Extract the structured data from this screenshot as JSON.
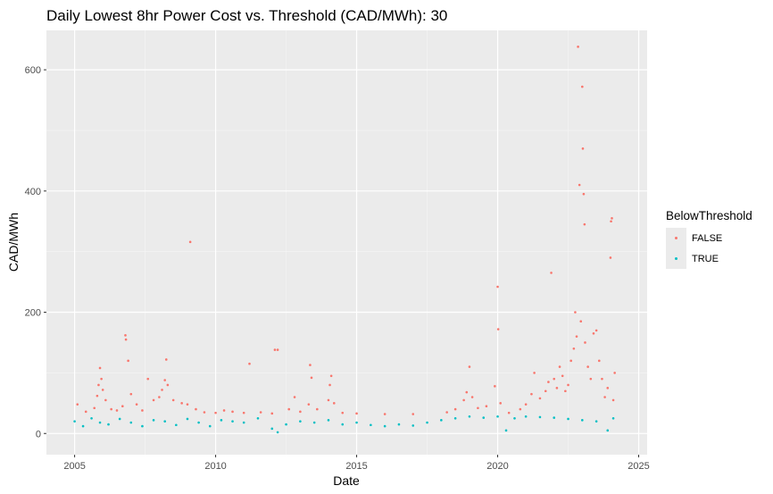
{
  "chart_data": {
    "type": "scatter",
    "title": "Daily Lowest 8hr Power Cost vs. Threshold (CAD/MWh): 30",
    "xlabel": "Date",
    "ylabel": "CAD/MWh",
    "xlim": [
      2004.0,
      2025.3
    ],
    "ylim": [
      -35,
      665
    ],
    "x_ticks": [
      2005,
      2010,
      2015,
      2020,
      2025
    ],
    "x_tick_labels": [
      "2005",
      "2010",
      "2015",
      "2020",
      "2025"
    ],
    "y_ticks": [
      0,
      200,
      400,
      600
    ],
    "y_tick_labels": [
      "0",
      "200",
      "400",
      "600"
    ],
    "grid": true,
    "legend": {
      "title": "BelowThreshold",
      "position": "right"
    },
    "series": [
      {
        "name": "FALSE",
        "color": "#F8766D",
        "points": [
          [
            2005.1,
            48
          ],
          [
            2005.4,
            36
          ],
          [
            2005.7,
            42
          ],
          [
            2005.8,
            62
          ],
          [
            2005.85,
            80
          ],
          [
            2005.9,
            108
          ],
          [
            2005.95,
            90
          ],
          [
            2006.0,
            72
          ],
          [
            2006.1,
            55
          ],
          [
            2006.3,
            40
          ],
          [
            2006.5,
            38
          ],
          [
            2006.7,
            45
          ],
          [
            2006.8,
            162
          ],
          [
            2006.82,
            155
          ],
          [
            2006.9,
            120
          ],
          [
            2007.0,
            65
          ],
          [
            2007.2,
            48
          ],
          [
            2007.4,
            38
          ],
          [
            2007.6,
            90
          ],
          [
            2007.8,
            55
          ],
          [
            2008.0,
            60
          ],
          [
            2008.1,
            72
          ],
          [
            2008.2,
            88
          ],
          [
            2008.25,
            122
          ],
          [
            2008.3,
            80
          ],
          [
            2008.5,
            55
          ],
          [
            2008.8,
            50
          ],
          [
            2009.0,
            48
          ],
          [
            2009.1,
            316
          ],
          [
            2009.3,
            40
          ],
          [
            2009.6,
            35
          ],
          [
            2010.0,
            34
          ],
          [
            2010.3,
            38
          ],
          [
            2010.6,
            36
          ],
          [
            2011.0,
            34
          ],
          [
            2011.2,
            115
          ],
          [
            2011.6,
            35
          ],
          [
            2012.0,
            33
          ],
          [
            2012.1,
            138
          ],
          [
            2012.2,
            138
          ],
          [
            2012.6,
            40
          ],
          [
            2012.8,
            60
          ],
          [
            2013.0,
            36
          ],
          [
            2013.3,
            48
          ],
          [
            2013.35,
            113
          ],
          [
            2013.4,
            92
          ],
          [
            2013.6,
            40
          ],
          [
            2014.0,
            55
          ],
          [
            2014.05,
            80
          ],
          [
            2014.1,
            95
          ],
          [
            2014.2,
            50
          ],
          [
            2014.5,
            34
          ],
          [
            2015.0,
            33
          ],
          [
            2016.0,
            32
          ],
          [
            2017.0,
            32
          ],
          [
            2018.2,
            35
          ],
          [
            2018.5,
            40
          ],
          [
            2018.8,
            55
          ],
          [
            2018.9,
            68
          ],
          [
            2019.0,
            110
          ],
          [
            2019.1,
            60
          ],
          [
            2019.3,
            42
          ],
          [
            2019.6,
            45
          ],
          [
            2019.9,
            78
          ],
          [
            2020.0,
            242
          ],
          [
            2020.02,
            172
          ],
          [
            2020.1,
            50
          ],
          [
            2020.4,
            34
          ],
          [
            2020.8,
            40
          ],
          [
            2021.0,
            48
          ],
          [
            2021.2,
            65
          ],
          [
            2021.3,
            100
          ],
          [
            2021.5,
            58
          ],
          [
            2021.7,
            70
          ],
          [
            2021.8,
            85
          ],
          [
            2021.9,
            265
          ],
          [
            2022.0,
            90
          ],
          [
            2022.1,
            75
          ],
          [
            2022.2,
            110
          ],
          [
            2022.3,
            95
          ],
          [
            2022.4,
            70
          ],
          [
            2022.5,
            80
          ],
          [
            2022.6,
            120
          ],
          [
            2022.7,
            140
          ],
          [
            2022.75,
            200
          ],
          [
            2022.8,
            160
          ],
          [
            2022.85,
            638
          ],
          [
            2022.9,
            410
          ],
          [
            2022.95,
            185
          ],
          [
            2023.0,
            572
          ],
          [
            2023.02,
            470
          ],
          [
            2023.05,
            395
          ],
          [
            2023.08,
            345
          ],
          [
            2023.1,
            150
          ],
          [
            2023.2,
            110
          ],
          [
            2023.3,
            90
          ],
          [
            2023.4,
            165
          ],
          [
            2023.5,
            170
          ],
          [
            2023.6,
            120
          ],
          [
            2023.7,
            90
          ],
          [
            2023.8,
            60
          ],
          [
            2023.9,
            75
          ],
          [
            2024.0,
            290
          ],
          [
            2024.02,
            350
          ],
          [
            2024.05,
            355
          ],
          [
            2024.1,
            55
          ],
          [
            2024.15,
            100
          ]
        ]
      },
      {
        "name": "TRUE",
        "color": "#00BFC4",
        "points": [
          [
            2005.0,
            20
          ],
          [
            2005.3,
            12
          ],
          [
            2005.6,
            25
          ],
          [
            2005.9,
            18
          ],
          [
            2006.2,
            15
          ],
          [
            2006.6,
            24
          ],
          [
            2007.0,
            18
          ],
          [
            2007.4,
            12
          ],
          [
            2007.8,
            22
          ],
          [
            2008.2,
            20
          ],
          [
            2008.6,
            14
          ],
          [
            2009.0,
            24
          ],
          [
            2009.4,
            18
          ],
          [
            2009.8,
            12
          ],
          [
            2010.2,
            22
          ],
          [
            2010.6,
            20
          ],
          [
            2011.0,
            18
          ],
          [
            2011.5,
            25
          ],
          [
            2012.0,
            8
          ],
          [
            2012.2,
            2
          ],
          [
            2012.5,
            15
          ],
          [
            2013.0,
            20
          ],
          [
            2013.5,
            18
          ],
          [
            2014.0,
            22
          ],
          [
            2014.5,
            15
          ],
          [
            2015.0,
            18
          ],
          [
            2015.5,
            14
          ],
          [
            2016.0,
            12
          ],
          [
            2016.5,
            15
          ],
          [
            2017.0,
            13
          ],
          [
            2017.5,
            18
          ],
          [
            2018.0,
            22
          ],
          [
            2018.5,
            25
          ],
          [
            2019.0,
            28
          ],
          [
            2019.5,
            26
          ],
          [
            2020.0,
            28
          ],
          [
            2020.3,
            5
          ],
          [
            2020.6,
            25
          ],
          [
            2021.0,
            28
          ],
          [
            2021.5,
            27
          ],
          [
            2022.0,
            26
          ],
          [
            2022.5,
            24
          ],
          [
            2023.0,
            22
          ],
          [
            2023.5,
            20
          ],
          [
            2023.9,
            5
          ],
          [
            2024.1,
            25
          ]
        ]
      }
    ]
  }
}
